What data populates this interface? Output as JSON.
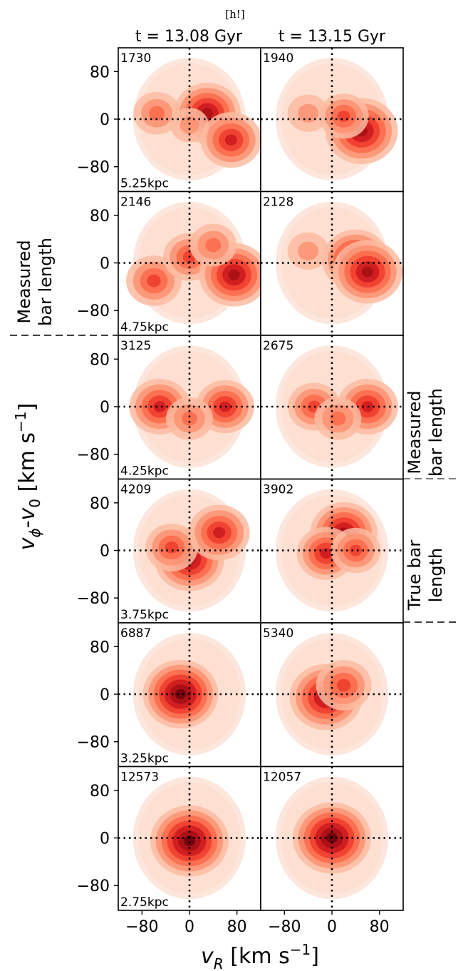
{
  "header_marker": "[h!]",
  "column_titles": [
    "t = 13.08 Gyr",
    "t = 13.15 Gyr"
  ],
  "xlabel": "v_R [km s^-1]",
  "ylabel": "v_φ-v_0 [km s^-1]",
  "annotations": {
    "left_measured": [
      "Measured",
      "bar length"
    ],
    "right_measured": [
      "Measured",
      "bar length"
    ],
    "right_true": [
      "True bar",
      "length"
    ]
  },
  "colors": {
    "contour_light": "#fde6dc",
    "contour_dark": "#67000d",
    "guide": "#000000"
  },
  "chart_data": {
    "type": "heatmap",
    "xlabel": "v_R [km s^-1]",
    "ylabel": "v_φ-v_0 [km s^-1]",
    "xticks": [
      -80,
      0,
      80
    ],
    "yticks": [
      -80,
      0,
      80
    ],
    "xlim": [
      -120,
      120
    ],
    "ylim": [
      -120,
      120
    ],
    "reference_lines": {
      "x": 0,
      "y": 0,
      "style": "dotted"
    },
    "columns": [
      "t = 13.08 Gyr",
      "t = 13.15 Gyr"
    ],
    "rows": [
      "5.25kpc",
      "4.75kpc",
      "4.25kpc",
      "3.75kpc",
      "3.25kpc",
      "2.75kpc"
    ],
    "panels": [
      {
        "row": 0,
        "col": 0,
        "count": "1730",
        "radius": "5.25kpc",
        "peaks": [
          [
            -55,
            10,
            0.45
          ],
          [
            30,
            10,
            0.8
          ],
          [
            70,
            -35,
            0.7
          ],
          [
            0,
            -10,
            0.3
          ]
        ]
      },
      {
        "row": 0,
        "col": 1,
        "count": "1940",
        "radius": "5.25kpc",
        "peaks": [
          [
            -40,
            10,
            0.35
          ],
          [
            50,
            -20,
            0.9
          ],
          [
            20,
            5,
            0.5
          ]
        ]
      },
      {
        "row": 1,
        "col": 0,
        "count": "2146",
        "radius": "4.75kpc",
        "peaks": [
          [
            -60,
            -30,
            0.6
          ],
          [
            0,
            10,
            0.55
          ],
          [
            75,
            -20,
            0.85
          ],
          [
            40,
            30,
            0.45
          ]
        ]
      },
      {
        "row": 1,
        "col": 1,
        "count": "2128",
        "radius": "4.75kpc",
        "peaks": [
          [
            -40,
            20,
            0.35
          ],
          [
            40,
            5,
            0.8
          ],
          [
            60,
            -15,
            0.85
          ]
        ]
      },
      {
        "row": 2,
        "col": 0,
        "count": "3125",
        "radius": "4.25kpc",
        "peaks": [
          [
            -50,
            0,
            0.7
          ],
          [
            60,
            0,
            0.65
          ],
          [
            0,
            -20,
            0.45
          ]
        ]
      },
      {
        "row": 2,
        "col": 1,
        "count": "2675",
        "radius": "4.25kpc",
        "peaks": [
          [
            -30,
            0,
            0.55
          ],
          [
            60,
            0,
            0.7
          ],
          [
            10,
            -20,
            0.45
          ]
        ]
      },
      {
        "row": 3,
        "col": 0,
        "count": "4209",
        "radius": "3.75kpc",
        "peaks": [
          [
            0,
            -15,
            0.85
          ],
          [
            50,
            30,
            0.7
          ],
          [
            -30,
            5,
            0.55
          ]
        ]
      },
      {
        "row": 3,
        "col": 1,
        "count": "3902",
        "radius": "3.75kpc",
        "peaks": [
          [
            20,
            30,
            0.8
          ],
          [
            -10,
            -5,
            0.65
          ],
          [
            40,
            0,
            0.5
          ]
        ]
      },
      {
        "row": 4,
        "col": 0,
        "count": "6887",
        "radius": "3.25kpc",
        "peaks": [
          [
            -15,
            0,
            0.95
          ]
        ]
      },
      {
        "row": 4,
        "col": 1,
        "count": "5340",
        "radius": "3.25kpc",
        "peaks": [
          [
            -10,
            -5,
            0.9
          ],
          [
            20,
            15,
            0.6
          ]
        ]
      },
      {
        "row": 5,
        "col": 0,
        "count": "12573",
        "radius": "2.75kpc",
        "peaks": [
          [
            0,
            -5,
            1.0
          ]
        ]
      },
      {
        "row": 5,
        "col": 1,
        "count": "12057",
        "radius": "2.75kpc",
        "peaks": [
          [
            0,
            0,
            1.0
          ]
        ]
      }
    ]
  }
}
